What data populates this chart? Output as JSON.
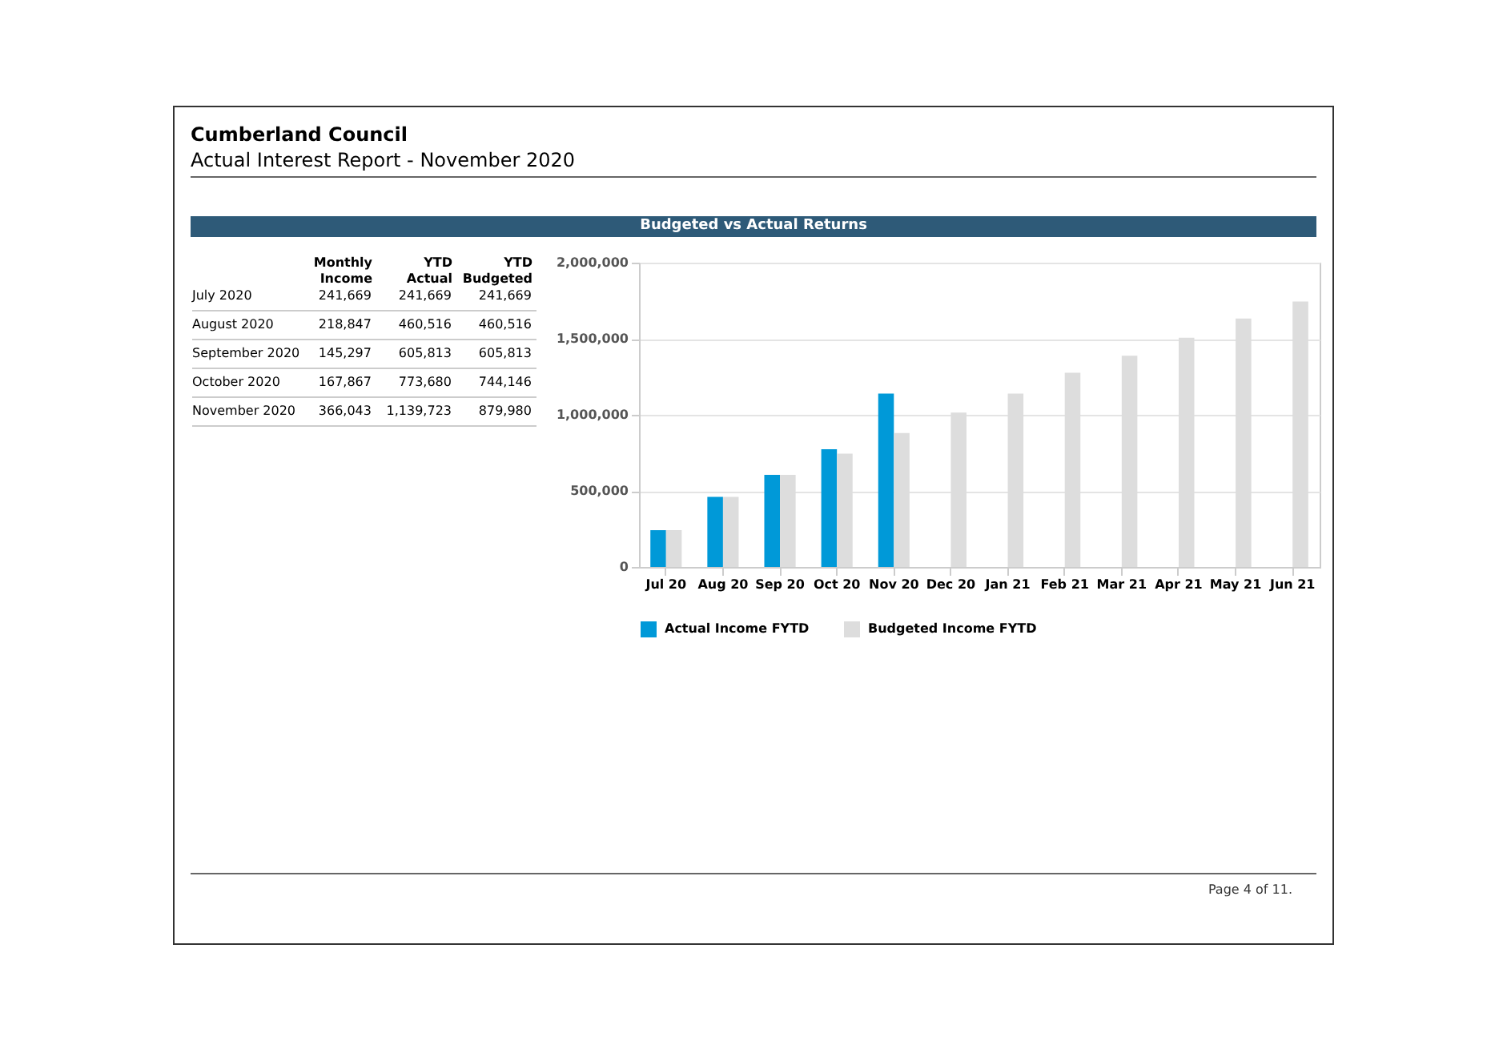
{
  "chart_data": [
    {
      "type": "other",
      "title": "Cumberland Council",
      "subtitle": "Actual Interest Report - November 2020",
      "categories": [
        "July 2020",
        "August 2020",
        "September 2020",
        "October 2020",
        "November 2020"
      ],
      "series": [
        {
          "name": "Monthly Income",
          "values": [
            241669,
            218847,
            145297,
            167867,
            366043
          ],
          "value_labels": [
            "241,669",
            "218,847",
            "145,297",
            "167,867",
            "366,043"
          ]
        },
        {
          "name": "YTD Actual",
          "values": [
            241669,
            460516,
            605813,
            773680,
            1139723
          ],
          "value_labels": [
            "241,669",
            "460,516",
            "605,813",
            "773,680",
            "1,139,723"
          ]
        },
        {
          "name": "YTD Budgeted",
          "values": [
            241669,
            460516,
            605813,
            744146,
            879980
          ],
          "value_labels": [
            "241,669",
            "460,516",
            "605,813",
            "744,146",
            "879,980"
          ]
        }
      ]
    },
    {
      "type": "bar",
      "title": "Budgeted vs Actual Returns",
      "categories": [
        "Jul 20",
        "Aug 20",
        "Sep 20",
        "Oct 20",
        "Nov 20",
        "Dec 20",
        "Jan 21",
        "Feb 21",
        "Mar 21",
        "Apr 21",
        "May 21",
        "Jun 21"
      ],
      "ylim": [
        0,
        2000000
      ],
      "yticks": [
        0,
        {
          "value": 500000,
          "label": "500,000"
        },
        {
          "value": 1000000,
          "label": "1,000,000"
        },
        {
          "value": 1500000,
          "label": "1,500,000"
        },
        {
          "value": 2000000,
          "label": "2,000,000"
        }
      ],
      "grid": "y",
      "legend": "bottom",
      "annotations": [
        "Page 4 of 11."
      ],
      "series": [
        {
          "name": "Actual Income FYTD",
          "color": "#0099d8",
          "values": [
            241669,
            460516,
            605813,
            773680,
            1139723,
            null,
            null,
            null,
            null,
            null,
            null,
            null
          ]
        },
        {
          "name": "Budgeted Income FYTD",
          "color": "#dddddd",
          "values": [
            241669,
            460516,
            605813,
            744146,
            879980,
            1015000,
            1140000,
            1276000,
            1388000,
            1507000,
            1633000,
            1745000
          ]
        }
      ]
    }
  ]
}
